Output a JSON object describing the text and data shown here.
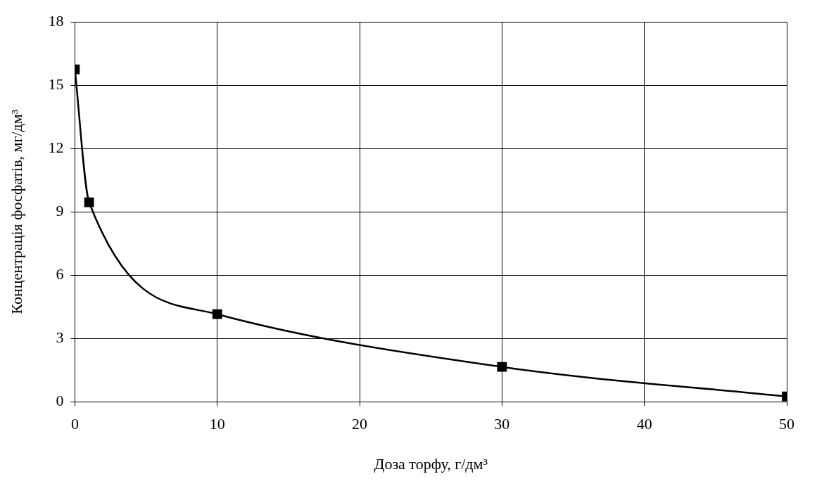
{
  "chart_data": {
    "type": "line",
    "xlabel": "Доза торфу, г/дм³",
    "ylabel": "Концентрація фосфатів, мг/дм³",
    "x": [
      0,
      1,
      10,
      30,
      50
    ],
    "series": [
      {
        "color": "#000000",
        "values": [
          15.75,
          9.45,
          4.15,
          1.65,
          0.25
        ]
      }
    ],
    "xlim": [
      0,
      50
    ],
    "xticks": [
      0,
      10,
      20,
      30,
      40,
      50
    ],
    "ylim": [
      0,
      18
    ],
    "yticks": [
      0,
      3,
      6,
      9,
      12,
      15,
      18
    ],
    "grid": true,
    "legend": false,
    "marker": "square",
    "line_style": "solid"
  }
}
